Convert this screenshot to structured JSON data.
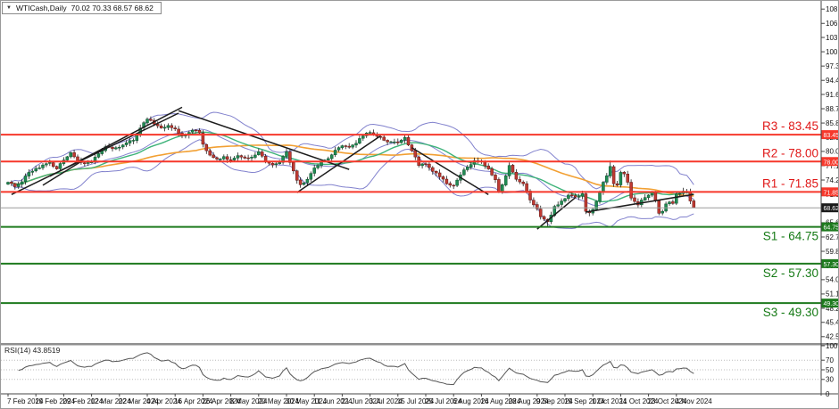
{
  "title": {
    "symbol": "WTICash,Daily",
    "ohlc": "70.02 70.33 68.57 68.62",
    "collapse_arrow_icon": "▼"
  },
  "levels": {
    "resistance": [
      {
        "name": "R3",
        "price": 83.45,
        "label": "R3 - 83.45",
        "tag": "83.45"
      },
      {
        "name": "R2",
        "price": 78.0,
        "label": "R2 - 78.00",
        "tag": "78.00"
      },
      {
        "name": "R1",
        "price": 71.85,
        "label": "R1 - 71.85",
        "tag": "71.85"
      }
    ],
    "support": [
      {
        "name": "S1",
        "price": 64.75,
        "label": "S1 - 64.75",
        "tag": "64.75"
      },
      {
        "name": "S2",
        "price": 57.3,
        "label": "S2 - 57.30",
        "tag": "57.30"
      },
      {
        "name": "S3",
        "price": 49.3,
        "label": "S3 - 49.30",
        "tag": "49.30"
      }
    ],
    "current_price": 68.62,
    "current_price_tag": "68.62"
  },
  "price_axis": {
    "ticks": [
      "108.90",
      "106.00",
      "103.15",
      "100.25",
      "97.35",
      "94.45",
      "91.60",
      "88.70",
      "85.80",
      "82.90",
      "80.05",
      "77.15",
      "74.25",
      "71.35",
      "68.45",
      "65.60",
      "62.70",
      "59.80",
      "56.90",
      "54.05",
      "51.15",
      "48.25",
      "45.40",
      "42.50"
    ],
    "tick_values": [
      108.9,
      106.0,
      103.15,
      100.25,
      97.35,
      94.45,
      91.6,
      88.7,
      85.8,
      82.9,
      80.05,
      77.15,
      74.25,
      71.35,
      68.45,
      65.6,
      62.7,
      59.8,
      56.9,
      54.05,
      51.15,
      48.25,
      45.4,
      42.5
    ]
  },
  "date_axis": {
    "labels": [
      "7 Feb 2024",
      "19 Feb 2024",
      "29 Feb 2024",
      "12 Mar 2024",
      "22 Mar 2024",
      "4 Apr 2024",
      "16 Apr 2024",
      "26 Apr 2024",
      "8 May 2024",
      "20 May 2024",
      "30 May 2024",
      "11 Jun 2024",
      "21 Jun 2024",
      "3 Jul 2024",
      "15 Jul 2024",
      "25 Jul 2024",
      "6 Aug 2024",
      "16 Aug 2024",
      "28 Aug 2024",
      "9 Sep 2024",
      "19 Sep 2024",
      "1 Oct 2024",
      "11 Oct 2024",
      "23 Oct 2024",
      "4 Nov 2024"
    ],
    "bars_per_label": 8
  },
  "rsi": {
    "label": "RSI(14) 43.8519",
    "period": 14,
    "last_value": 43.8519,
    "scale_ticks": [
      "100",
      "70",
      "50",
      "30",
      "0"
    ],
    "scale_values": [
      100,
      70,
      50,
      30,
      0
    ],
    "guides": [
      70,
      50,
      30
    ]
  },
  "chart_data": {
    "type": "candlestick",
    "symbol": "WTICash",
    "timeframe": "Daily",
    "bars": 198,
    "ylim": [
      41.2,
      110.2
    ],
    "last_bar_ohlc": {
      "open": 70.02,
      "high": 70.33,
      "low": 68.57,
      "close": 68.62
    },
    "price_path_anchors": [
      [
        0,
        73.8
      ],
      [
        2,
        72.9
      ],
      [
        4,
        73.9
      ],
      [
        6,
        75.8
      ],
      [
        8,
        76.6
      ],
      [
        10,
        77.3
      ],
      [
        12,
        77.8
      ],
      [
        14,
        76.5
      ],
      [
        16,
        78.3
      ],
      [
        18,
        79.8
      ],
      [
        20,
        78.1
      ],
      [
        22,
        77.6
      ],
      [
        24,
        77.9
      ],
      [
        26,
        79.6
      ],
      [
        28,
        81.0
      ],
      [
        30,
        80.6
      ],
      [
        32,
        80.9
      ],
      [
        34,
        81.8
      ],
      [
        36,
        82.3
      ],
      [
        38,
        84.8
      ],
      [
        40,
        86.6
      ],
      [
        42,
        85.6
      ],
      [
        44,
        84.8
      ],
      [
        46,
        85.3
      ],
      [
        48,
        84.6
      ],
      [
        50,
        83.2
      ],
      [
        52,
        83.9
      ],
      [
        54,
        84.3
      ],
      [
        55,
        83.8
      ],
      [
        56,
        81.5
      ],
      [
        58,
        79.3
      ],
      [
        60,
        78.5
      ],
      [
        62,
        79.0
      ],
      [
        64,
        78.3
      ],
      [
        66,
        79.2
      ],
      [
        68,
        78.7
      ],
      [
        70,
        78.9
      ],
      [
        72,
        80.0
      ],
      [
        74,
        77.9
      ],
      [
        76,
        77.3
      ],
      [
        78,
        77.8
      ],
      [
        80,
        80.0
      ],
      [
        81,
        77.8
      ],
      [
        82,
        76.1
      ],
      [
        83,
        74.2
      ],
      [
        84,
        73.3
      ],
      [
        86,
        74.4
      ],
      [
        88,
        76.7
      ],
      [
        90,
        78.0
      ],
      [
        92,
        78.6
      ],
      [
        94,
        80.3
      ],
      [
        96,
        81.2
      ],
      [
        98,
        80.9
      ],
      [
        100,
        81.7
      ],
      [
        102,
        83.2
      ],
      [
        104,
        83.9
      ],
      [
        106,
        83.1
      ],
      [
        108,
        82.3
      ],
      [
        110,
        82.0
      ],
      [
        112,
        81.8
      ],
      [
        114,
        82.9
      ],
      [
        116,
        80.2
      ],
      [
        118,
        77.2
      ],
      [
        120,
        77.5
      ],
      [
        122,
        76.0
      ],
      [
        124,
        74.9
      ],
      [
        126,
        73.5
      ],
      [
        128,
        73.1
      ],
      [
        130,
        75.3
      ],
      [
        132,
        76.9
      ],
      [
        134,
        78.2
      ],
      [
        136,
        78.0
      ],
      [
        138,
        76.5
      ],
      [
        140,
        74.3
      ],
      [
        141,
        71.9
      ],
      [
        142,
        73.3
      ],
      [
        143,
        75.1
      ],
      [
        144,
        77.2
      ],
      [
        146,
        74.4
      ],
      [
        148,
        73.5
      ],
      [
        150,
        70.2
      ],
      [
        152,
        68.4
      ],
      [
        153,
        66.8
      ],
      [
        155,
        65.8
      ],
      [
        157,
        68.9
      ],
      [
        159,
        70.0
      ],
      [
        161,
        71.2
      ],
      [
        163,
        70.8
      ],
      [
        165,
        71.5
      ],
      [
        166,
        67.9
      ],
      [
        167,
        67.6
      ],
      [
        168,
        68.3
      ],
      [
        169,
        69.9
      ],
      [
        170,
        71.8
      ],
      [
        171,
        73.8
      ],
      [
        172,
        75.1
      ],
      [
        173,
        77.0
      ],
      [
        174,
        73.5
      ],
      [
        175,
        73.2
      ],
      [
        176,
        75.8
      ],
      [
        177,
        75.5
      ],
      [
        178,
        73.8
      ],
      [
        179,
        70.6
      ],
      [
        180,
        69.9
      ],
      [
        181,
        69.2
      ],
      [
        182,
        70.2
      ],
      [
        183,
        70.7
      ],
      [
        184,
        71.2
      ],
      [
        185,
        71.8
      ],
      [
        186,
        70.1
      ],
      [
        187,
        67.5
      ],
      [
        188,
        67.9
      ],
      [
        189,
        69.4
      ],
      [
        190,
        69.8
      ],
      [
        191,
        69.5
      ],
      [
        192,
        71.4
      ],
      [
        193,
        71.5
      ],
      [
        194,
        72.0
      ],
      [
        195,
        71.9
      ],
      [
        196,
        70.0
      ],
      [
        197,
        68.62
      ]
    ],
    "extremes": {
      "high_bar": [
        40,
        86.95
      ],
      "low_bar": [
        155,
        64.85
      ],
      "oct_spike_high": [
        173,
        78.2
      ]
    },
    "trendlines": [
      [
        1,
        71.3,
        49,
        87.8
      ],
      [
        12,
        75.0,
        50,
        89.0
      ],
      [
        10,
        73.2,
        21,
        78.0
      ],
      [
        49,
        88.3,
        98,
        76.4
      ],
      [
        83,
        71.7,
        107,
        83.2
      ],
      [
        116,
        80.8,
        138,
        71.3
      ],
      [
        152,
        64.3,
        163,
        70.7
      ],
      [
        166,
        67.75,
        197,
        71.35
      ]
    ],
    "overlays": [
      {
        "name": "bollinger_bands",
        "period": 20,
        "deviation": 2,
        "color": "#8181cd"
      },
      {
        "name": "sma_fast",
        "period": 25,
        "color": "#3eb37a"
      },
      {
        "name": "sma_slow",
        "period": 55,
        "color": "#f2a033"
      }
    ]
  },
  "colors": {
    "bull_candle": "#218c54",
    "bull_border": "#0b4f2a",
    "bear_candle": "#c03a32",
    "bear_border": "#5d1512",
    "wick": "#222222",
    "bollinger": "#8181cd",
    "ma_fast": "#3eb37a",
    "ma_slow": "#f2a033",
    "resistance_line": "#f6382b",
    "support_line": "#1e7a1e",
    "resistance_text": "#e01818",
    "support_text": "#157a15",
    "trendline": "#1c1c1c",
    "current_price_line": "#9b9b9b",
    "current_tag_bg": "#1a1a1a",
    "rsi_line": "#555555",
    "axis_text": "#111111",
    "grid_dotted": "#bbbbbb"
  }
}
